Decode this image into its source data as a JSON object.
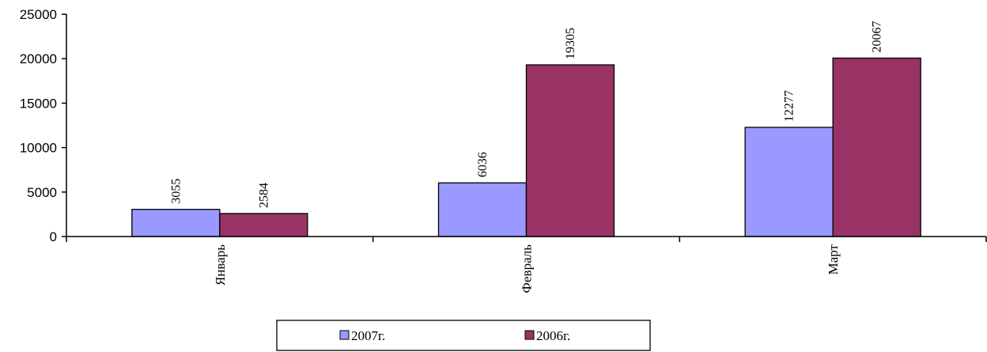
{
  "chart_data": {
    "type": "bar",
    "categories": [
      "Январь",
      "Февраль",
      "Март"
    ],
    "series": [
      {
        "name": "2007г.",
        "values": [
          3055,
          6036,
          12277
        ],
        "color": "#9999ff"
      },
      {
        "name": "2006г.",
        "values": [
          2584,
          19305,
          20067
        ],
        "color": "#993366"
      }
    ],
    "ylim": [
      0,
      25000
    ],
    "yticks": [
      0,
      5000,
      10000,
      15000,
      20000,
      25000
    ],
    "data_labels": true,
    "grid": false,
    "legend_position": "bottom"
  }
}
